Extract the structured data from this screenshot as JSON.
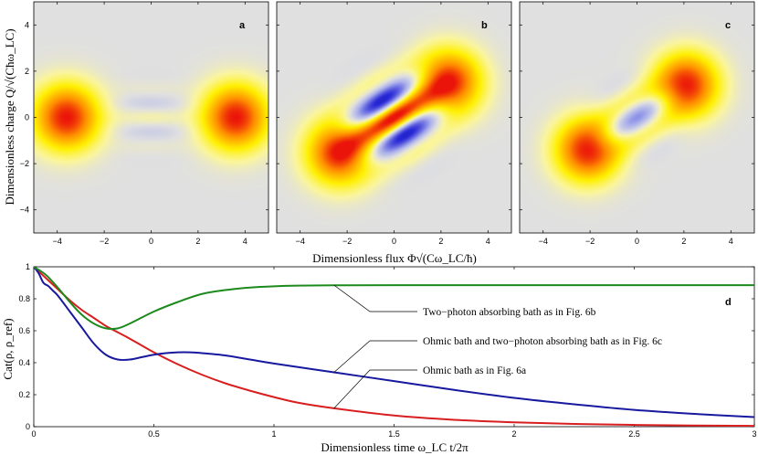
{
  "chart_data": [
    {
      "type": "heatmap",
      "panel_label": "a",
      "xlim": [
        -5,
        5
      ],
      "ylim": [
        -5,
        5
      ],
      "xticks": [
        "−4",
        "−2",
        "0",
        "2",
        "4"
      ],
      "yticks": [
        "4",
        "2",
        "0",
        "−2",
        "−4"
      ],
      "xtick_values": [
        -4,
        -2,
        0,
        2,
        4
      ],
      "ytick_values": [
        4,
        2,
        0,
        -2,
        -4
      ],
      "ylabel": "Dimensionless charge Q/√(Cħω_LC)",
      "lobes": [
        {
          "x": -3.6,
          "y": 0,
          "sx": 0.95,
          "sy": 0.95,
          "amp": 1.0
        },
        {
          "x": 3.6,
          "y": 0,
          "sx": 0.95,
          "sy": 0.95,
          "amp": 1.0
        }
      ],
      "fringes": {
        "cx": 0,
        "cy": 0,
        "angle_deg": 0,
        "spacing": 0.68,
        "sl": 1.0,
        "st": 0.85,
        "amp": 0.09,
        "parity": 1
      }
    },
    {
      "type": "heatmap",
      "panel_label": "b",
      "xlim": [
        -5,
        5
      ],
      "ylim": [
        -5,
        5
      ],
      "xticks": [
        "−4",
        "−2",
        "0",
        "2",
        "4"
      ],
      "xtick_values": [
        -4,
        -2,
        0,
        2,
        4
      ],
      "lobes": [
        {
          "x": -2.3,
          "y": -1.5,
          "sx": 0.95,
          "sy": 0.95,
          "amp": 1.0
        },
        {
          "x": 2.3,
          "y": 1.5,
          "sx": 0.95,
          "sy": 0.95,
          "amp": 1.0
        }
      ],
      "fringes": {
        "cx": 0,
        "cy": 0,
        "angle_deg": 33,
        "spacing": 1.0,
        "sl": 1.2,
        "st": 0.95,
        "amp": 1.0,
        "parity": 1
      }
    },
    {
      "type": "heatmap",
      "panel_label": "c",
      "xlim": [
        -5,
        5
      ],
      "ylim": [
        -5,
        5
      ],
      "xticks": [
        "−4",
        "−2",
        "0",
        "2",
        "4"
      ],
      "xtick_values": [
        -4,
        -2,
        0,
        2,
        4
      ],
      "lobes": [
        {
          "x": -2.1,
          "y": -1.4,
          "sx": 0.92,
          "sy": 0.92,
          "amp": 1.0
        },
        {
          "x": 2.1,
          "y": 1.4,
          "sx": 0.92,
          "sy": 0.92,
          "amp": 1.0
        }
      ],
      "fringes": {
        "cx": 0,
        "cy": 0,
        "angle_deg": 33,
        "spacing": 1.0,
        "sl": 1.1,
        "st": 0.8,
        "amp": 0.32,
        "parity": -1
      }
    },
    {
      "type": "line",
      "panel_label": "d",
      "xlabel": "Dimensionless time ω_LC t/2π",
      "ylabel": "Cat(ρ, ρ_ref)",
      "xlim": [
        0,
        3
      ],
      "ylim": [
        0,
        1
      ],
      "xticks": [
        "0",
        "0.5",
        "1",
        "1.5",
        "2",
        "2.5",
        "3"
      ],
      "xtick_values": [
        0,
        0.5,
        1,
        1.5,
        2,
        2.5,
        3
      ],
      "yticks": [
        "0",
        "0.2",
        "0.4",
        "0.6",
        "0.8",
        "1"
      ],
      "ytick_values": [
        0,
        0.2,
        0.4,
        0.6,
        0.8,
        1
      ],
      "series": [
        {
          "color": "#d81e1e",
          "x": [
            0,
            0.05,
            0.1,
            0.15,
            0.2,
            0.25,
            0.3,
            0.35,
            0.4,
            0.5,
            0.6,
            0.7,
            0.8,
            0.9,
            1.0,
            1.1,
            1.25,
            1.5,
            1.75,
            2.0,
            2.25,
            2.5,
            2.75,
            3.0
          ],
          "y": [
            1.0,
            0.93,
            0.86,
            0.79,
            0.73,
            0.68,
            0.63,
            0.59,
            0.55,
            0.465,
            0.39,
            0.325,
            0.27,
            0.225,
            0.185,
            0.15,
            0.115,
            0.07,
            0.043,
            0.027,
            0.017,
            0.011,
            0.007,
            0.005
          ]
        },
        {
          "color": "#17199e",
          "x": [
            0,
            0.02,
            0.04,
            0.06,
            0.08,
            0.1,
            0.15,
            0.2,
            0.25,
            0.3,
            0.35,
            0.4,
            0.45,
            0.5,
            0.55,
            0.6,
            0.65,
            0.7,
            0.8,
            0.9,
            1.0,
            1.25,
            1.5,
            1.75,
            2.0,
            2.25,
            2.5,
            2.75,
            3.0
          ],
          "y": [
            1.0,
            0.96,
            0.9,
            0.88,
            0.85,
            0.82,
            0.72,
            0.62,
            0.52,
            0.45,
            0.42,
            0.42,
            0.435,
            0.45,
            0.46,
            0.465,
            0.465,
            0.46,
            0.445,
            0.42,
            0.395,
            0.34,
            0.285,
            0.23,
            0.18,
            0.14,
            0.105,
            0.08,
            0.06
          ]
        },
        {
          "color": "#1d8a1d",
          "x": [
            0,
            0.05,
            0.1,
            0.15,
            0.2,
            0.25,
            0.3,
            0.35,
            0.4,
            0.5,
            0.6,
            0.7,
            0.8,
            0.9,
            1.0,
            1.1,
            1.25,
            1.5,
            2.0,
            2.5,
            3.0
          ],
          "y": [
            1.0,
            0.95,
            0.87,
            0.78,
            0.7,
            0.645,
            0.615,
            0.615,
            0.645,
            0.72,
            0.78,
            0.83,
            0.855,
            0.87,
            0.878,
            0.882,
            0.884,
            0.885,
            0.885,
            0.885,
            0.885
          ]
        }
      ],
      "annotations": [
        {
          "text": "Two−photon absorbing bath as in Fig. 6b",
          "target_x": 1.25,
          "target_y": 0.885,
          "series_index": 2
        },
        {
          "text": "Ohmic bath and two−photon absorbing bath as in Fig. 6c",
          "target_x": 1.25,
          "target_y": 0.34,
          "series_index": 1
        },
        {
          "text": "Ohmic bath as in Fig. 6a",
          "target_x": 1.25,
          "target_y": 0.115,
          "series_index": 0
        }
      ]
    }
  ],
  "shared_xlabel": "Dimensionless flux Φ√(Cω_LC/ħ)"
}
